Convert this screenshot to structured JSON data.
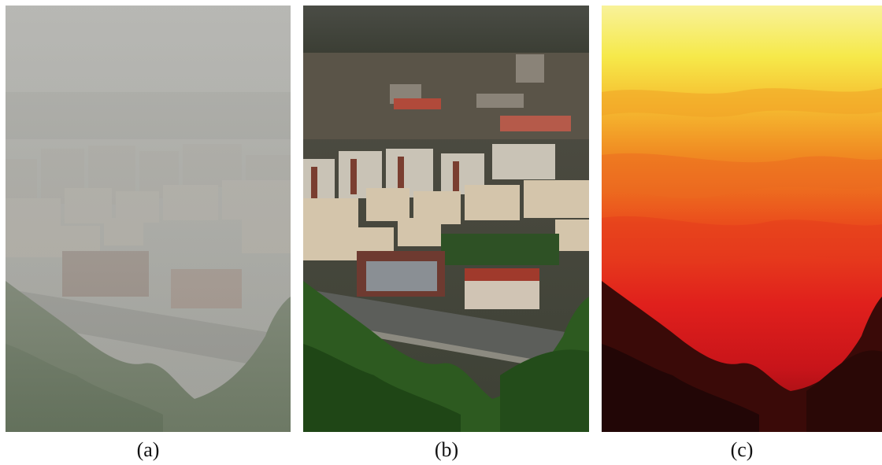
{
  "figure": {
    "panels": [
      {
        "id": "a",
        "label": "(a)",
        "content": "hazy-city-photo"
      },
      {
        "id": "b",
        "label": "(b)",
        "content": "dehazed-city-photo"
      },
      {
        "id": "c",
        "label": "(c)",
        "content": "transmission-heatmap"
      }
    ]
  },
  "colors": {
    "haze": "#a9aaa6",
    "building_light": "#d8d3c8",
    "building_red": "#b14a3a",
    "foliage": "#2f5a22",
    "heat_yellow": "#f6e94a",
    "heat_orange": "#f08a22",
    "heat_red": "#e0201c",
    "heat_dark": "#2a0806"
  }
}
